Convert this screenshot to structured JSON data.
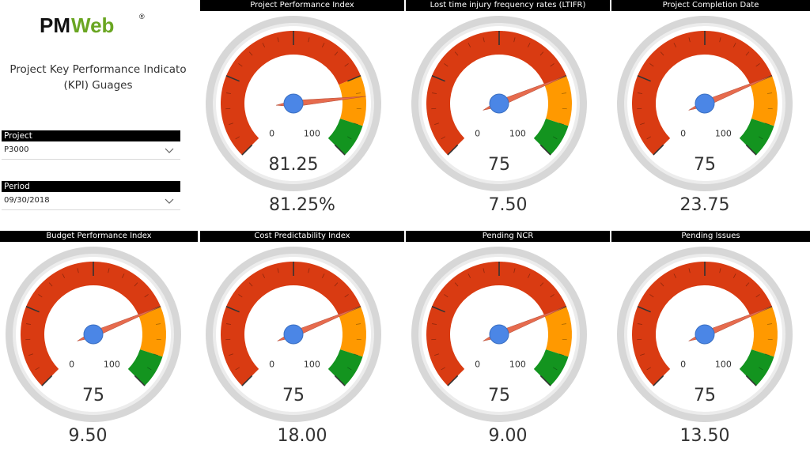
{
  "brand": {
    "logo_text_pm": "PM",
    "logo_text_web": "Web",
    "logo_mark": "®"
  },
  "page_title": "Project Key Performance Indicato (KPI) Guages",
  "filters": {
    "project": {
      "label": "Project",
      "value": "P3000"
    },
    "period": {
      "label": "Period",
      "value": "09/30/2018"
    }
  },
  "colors": {
    "red": "#d93b12",
    "orange": "#ff9900",
    "green": "#13941f",
    "needle": "#e66b4e",
    "hub": "#4b86e6",
    "bezel": "#d7d7d7"
  },
  "chart_data": [
    {
      "type": "gauge",
      "title": "Project Performance Index",
      "min": 0,
      "max": 100,
      "value": 81.25,
      "readout": "81.25",
      "card": "81.25%",
      "bands": [
        {
          "from": 0,
          "to": 75,
          "color": "red"
        },
        {
          "from": 75,
          "to": 90,
          "color": "orange"
        },
        {
          "from": 90,
          "to": 100,
          "color": "green"
        }
      ]
    },
    {
      "type": "gauge",
      "title": "Lost time injury frequency rates (LTIFR)",
      "min": 0,
      "max": 100,
      "value": 75,
      "readout": "75",
      "card": "7.50",
      "bands": [
        {
          "from": 0,
          "to": 75,
          "color": "red"
        },
        {
          "from": 75,
          "to": 90,
          "color": "orange"
        },
        {
          "from": 90,
          "to": 100,
          "color": "green"
        }
      ]
    },
    {
      "type": "gauge",
      "title": "Project Completion Date",
      "min": 0,
      "max": 100,
      "value": 75,
      "readout": "75",
      "card": "23.75",
      "bands": [
        {
          "from": 0,
          "to": 75,
          "color": "red"
        },
        {
          "from": 75,
          "to": 90,
          "color": "orange"
        },
        {
          "from": 90,
          "to": 100,
          "color": "green"
        }
      ]
    },
    {
      "type": "gauge",
      "title": "Budget Performance Index",
      "min": 0,
      "max": 100,
      "value": 75,
      "readout": "75",
      "card": "9.50",
      "bands": [
        {
          "from": 0,
          "to": 75,
          "color": "red"
        },
        {
          "from": 75,
          "to": 90,
          "color": "orange"
        },
        {
          "from": 90,
          "to": 100,
          "color": "green"
        }
      ]
    },
    {
      "type": "gauge",
      "title": "Cost Predictability Index",
      "min": 0,
      "max": 100,
      "value": 75,
      "readout": "75",
      "card": "18.00",
      "bands": [
        {
          "from": 0,
          "to": 75,
          "color": "red"
        },
        {
          "from": 75,
          "to": 90,
          "color": "orange"
        },
        {
          "from": 90,
          "to": 100,
          "color": "green"
        }
      ]
    },
    {
      "type": "gauge",
      "title": "Pending NCR",
      "min": 0,
      "max": 100,
      "value": 75,
      "readout": "75",
      "card": "9.00",
      "bands": [
        {
          "from": 0,
          "to": 75,
          "color": "red"
        },
        {
          "from": 75,
          "to": 90,
          "color": "orange"
        },
        {
          "from": 90,
          "to": 100,
          "color": "green"
        }
      ]
    },
    {
      "type": "gauge",
      "title": "Pending Issues",
      "min": 0,
      "max": 100,
      "value": 75,
      "readout": "75",
      "card": "13.50",
      "bands": [
        {
          "from": 0,
          "to": 75,
          "color": "red"
        },
        {
          "from": 75,
          "to": 90,
          "color": "orange"
        },
        {
          "from": 90,
          "to": 100,
          "color": "green"
        }
      ]
    }
  ]
}
